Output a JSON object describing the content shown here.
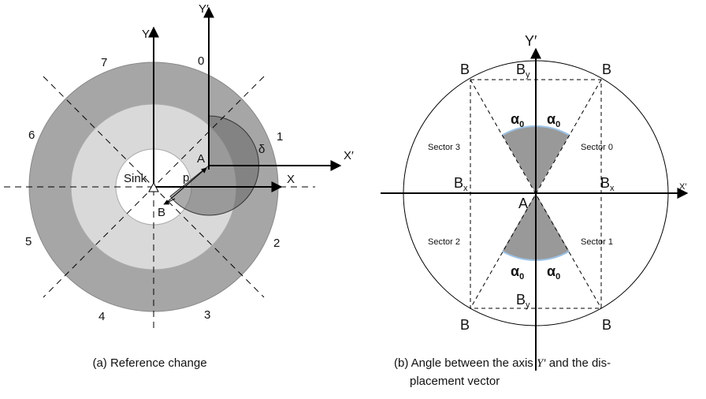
{
  "figure_a": {
    "axes": {
      "y": "Y",
      "x": "X",
      "y_prime": "Y′",
      "x_prime": "X′"
    },
    "sectors": [
      "0",
      "1",
      "2",
      "3",
      "4",
      "5",
      "6",
      "7"
    ],
    "labels": {
      "sink": "Sink",
      "a": "A",
      "b": "B",
      "p": "p",
      "delta": "δ"
    },
    "caption": "(a) Reference change"
  },
  "figure_b": {
    "axes": {
      "y_prime": "Y′",
      "x_prime": "X′"
    },
    "corners": [
      "B",
      "B",
      "B",
      "B"
    ],
    "by": [
      {
        "base": "B",
        "sub": "y"
      },
      {
        "base": "B",
        "sub": "y"
      }
    ],
    "bx": [
      {
        "base": "B",
        "sub": "x"
      },
      {
        "base": "B",
        "sub": "x"
      }
    ],
    "alpha": [
      {
        "base": "α",
        "sub": "0"
      },
      {
        "base": "α",
        "sub": "0"
      },
      {
        "base": "α",
        "sub": "0"
      },
      {
        "base": "α",
        "sub": "0"
      }
    ],
    "sectors": [
      "Sector 0",
      "Sector 1",
      "Sector 2",
      "Sector 3"
    ],
    "a": "A",
    "caption": {
      "before": "(b) Angle between the axis ",
      "symbol": "Y′",
      "after": " and the dis-",
      "line2": "placement vector"
    }
  }
}
